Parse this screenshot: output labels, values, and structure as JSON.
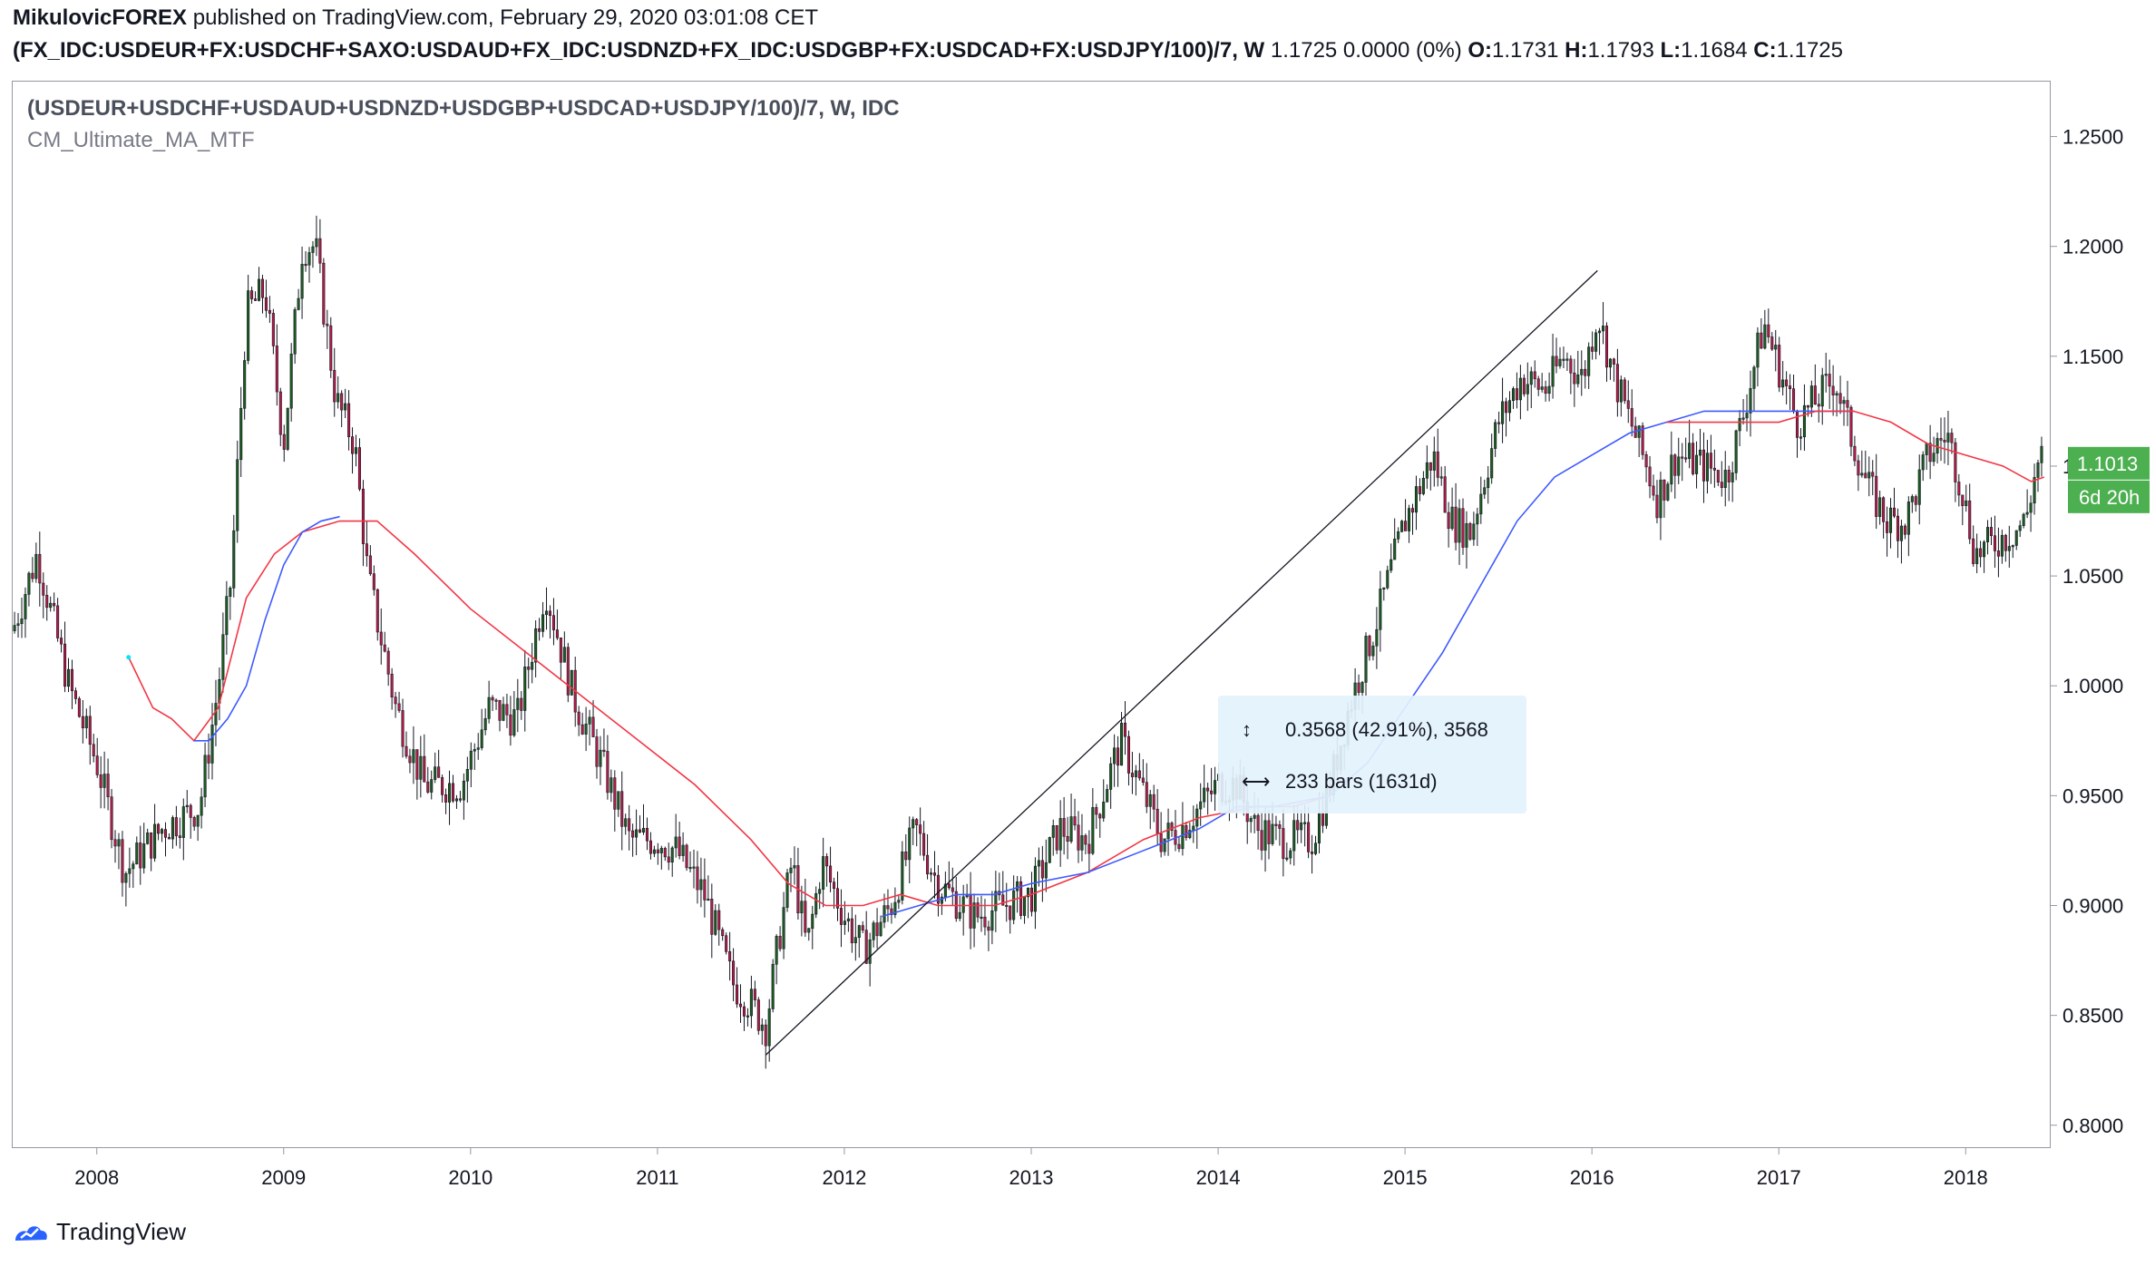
{
  "header": {
    "publisher": "MikulovicFOREX",
    "published_text": " published on TradingView.com, February 29, 2020 03:01:08 CET",
    "symbol": "(FX_IDC:USDEUR+FX:USDCHF+SAXO:USDAUD+FX_IDC:USDNZD+FX_IDC:USDGBP+FX:USDCAD+FX:USDJPY/100)/7, W",
    "quote": "1.1725 0.0000 (0%)",
    "o_label": "O:",
    "o_value": "1.1731",
    "h_label": "H:",
    "h_value": "1.1793",
    "l_label": "L:",
    "l_value": "1.1684",
    "c_label": "C:",
    "c_value": "1.1725"
  },
  "legend": {
    "series": "(USDEUR+USDCHF+USDAUD+USDNZD+USDGBP+USDCAD+USDJPY/100)/7, W, IDC",
    "indicator": "CM_Ultimate_MA_MTF"
  },
  "footer": {
    "brand": "TradingView"
  },
  "colors": {
    "up": "#26a69a",
    "up_body": "#1b5e20",
    "down_body": "#b71c4a",
    "wick": "#131722",
    "ma_red": "#f23645",
    "ma_blue": "#3d5afe",
    "accent": "#4caf50",
    "measure_bg": "#e3f2fd"
  },
  "chart_data": {
    "type": "candlestick",
    "timeframe": "W",
    "x_axis": {
      "type": "time",
      "range": [
        2007.55,
        2018.45
      ],
      "tick_labels": [
        "2008",
        "2009",
        "2010",
        "2011",
        "2012",
        "2013",
        "2014",
        "2015",
        "2016",
        "2017",
        "2018"
      ]
    },
    "y_axis": {
      "range": [
        0.79,
        1.275
      ],
      "position": "right",
      "tick_labels": [
        "1.2500",
        "1.2000",
        "1.1500",
        "1.1000",
        "1.0500",
        "1.0000",
        "0.9500",
        "0.9000",
        "0.8500",
        "0.8000"
      ],
      "tick_values": [
        1.25,
        1.2,
        1.15,
        1.1,
        1.05,
        1.0,
        0.95,
        0.9,
        0.85,
        0.8
      ]
    },
    "price_anchors": [
      [
        2007.55,
        1.025
      ],
      [
        2007.68,
        1.06
      ],
      [
        2007.85,
        1.0
      ],
      [
        2008.0,
        0.965
      ],
      [
        2008.15,
        0.915
      ],
      [
        2008.35,
        0.935
      ],
      [
        2008.55,
        0.945
      ],
      [
        2008.65,
        1.0
      ],
      [
        2008.72,
        1.05
      ],
      [
        2008.8,
        1.17
      ],
      [
        2008.9,
        1.18
      ],
      [
        2009.0,
        1.11
      ],
      [
        2009.1,
        1.2
      ],
      [
        2009.17,
        1.2
      ],
      [
        2009.28,
        1.13
      ],
      [
        2009.38,
        1.11
      ],
      [
        2009.45,
        1.05
      ],
      [
        2009.6,
        0.99
      ],
      [
        2009.75,
        0.955
      ],
      [
        2009.95,
        0.955
      ],
      [
        2010.1,
        0.99
      ],
      [
        2010.25,
        0.985
      ],
      [
        2010.4,
        1.045
      ],
      [
        2010.55,
        0.995
      ],
      [
        2010.7,
        0.965
      ],
      [
        2010.85,
        0.93
      ],
      [
        2011.0,
        0.93
      ],
      [
        2011.1,
        0.925
      ],
      [
        2011.25,
        0.905
      ],
      [
        2011.4,
        0.865
      ],
      [
        2011.5,
        0.855
      ],
      [
        2011.58,
        0.845
      ],
      [
        2011.65,
        0.885
      ],
      [
        2011.72,
        0.92
      ],
      [
        2011.8,
        0.88
      ],
      [
        2011.88,
        0.92
      ],
      [
        2012.0,
        0.895
      ],
      [
        2012.1,
        0.88
      ],
      [
        2012.25,
        0.9
      ],
      [
        2012.38,
        0.935
      ],
      [
        2012.5,
        0.91
      ],
      [
        2012.7,
        0.895
      ],
      [
        2012.85,
        0.9
      ],
      [
        2013.0,
        0.905
      ],
      [
        2013.15,
        0.935
      ],
      [
        2013.3,
        0.93
      ],
      [
        2013.4,
        0.955
      ],
      [
        2013.48,
        0.975
      ],
      [
        2013.58,
        0.955
      ],
      [
        2013.7,
        0.93
      ],
      [
        2013.8,
        0.935
      ],
      [
        2014.0,
        0.955
      ],
      [
        2014.1,
        0.955
      ],
      [
        2014.2,
        0.935
      ],
      [
        2014.35,
        0.93
      ],
      [
        2014.5,
        0.93
      ],
      [
        2014.6,
        0.955
      ],
      [
        2014.7,
        0.99
      ],
      [
        2014.85,
        1.03
      ],
      [
        2015.0,
        1.075
      ],
      [
        2015.15,
        1.105
      ],
      [
        2015.25,
        1.075
      ],
      [
        2015.35,
        1.07
      ],
      [
        2015.5,
        1.12
      ],
      [
        2015.62,
        1.14
      ],
      [
        2015.75,
        1.135
      ],
      [
        2015.85,
        1.15
      ],
      [
        2015.95,
        1.14
      ],
      [
        2016.03,
        1.17
      ],
      [
        2016.12,
        1.14
      ],
      [
        2016.25,
        1.11
      ],
      [
        2016.35,
        1.085
      ],
      [
        2016.45,
        1.105
      ],
      [
        2016.6,
        1.1
      ],
      [
        2016.72,
        1.095
      ],
      [
        2016.8,
        1.12
      ],
      [
        2016.92,
        1.165
      ],
      [
        2017.02,
        1.14
      ],
      [
        2017.1,
        1.12
      ],
      [
        2017.2,
        1.13
      ],
      [
        2017.3,
        1.14
      ],
      [
        2017.38,
        1.115
      ],
      [
        2017.48,
        1.09
      ],
      [
        2017.58,
        1.075
      ],
      [
        2017.68,
        1.075
      ],
      [
        2017.8,
        1.105
      ],
      [
        2017.9,
        1.115
      ],
      [
        2017.98,
        1.09
      ],
      [
        2018.05,
        1.06
      ],
      [
        2018.15,
        1.065
      ],
      [
        2018.25,
        1.07
      ],
      [
        2018.32,
        1.075
      ],
      [
        2018.38,
        1.1
      ],
      [
        2018.42,
        1.105
      ]
    ],
    "ma_red": [
      [
        2008.17,
        1.013
      ],
      [
        2008.3,
        0.99
      ],
      [
        2008.4,
        0.985
      ],
      [
        2008.52,
        0.975
      ],
      [
        2008.65,
        0.99
      ],
      [
        2008.8,
        1.04
      ],
      [
        2008.95,
        1.06
      ],
      [
        2009.1,
        1.07
      ],
      [
        2009.3,
        1.075
      ],
      [
        2009.5,
        1.075
      ],
      [
        2009.7,
        1.06
      ],
      [
        2010.0,
        1.035
      ],
      [
        2010.3,
        1.015
      ],
      [
        2010.6,
        0.995
      ],
      [
        2010.9,
        0.975
      ],
      [
        2011.2,
        0.955
      ],
      [
        2011.5,
        0.93
      ],
      [
        2011.7,
        0.91
      ],
      [
        2011.9,
        0.9
      ],
      [
        2012.1,
        0.9
      ],
      [
        2012.3,
        0.905
      ],
      [
        2012.5,
        0.9
      ],
      [
        2012.8,
        0.9
      ],
      [
        2013.0,
        0.905
      ],
      [
        2013.3,
        0.915
      ],
      [
        2013.6,
        0.93
      ],
      [
        2013.9,
        0.94
      ],
      [
        2014.2,
        0.945
      ],
      [
        2014.4,
        0.945
      ],
      [
        2014.6,
        0.95
      ]
    ],
    "ma_blue": [
      [
        2008.52,
        0.975
      ],
      [
        2008.6,
        0.975
      ],
      [
        2008.7,
        0.985
      ],
      [
        2008.8,
        1.0
      ],
      [
        2008.9,
        1.03
      ],
      [
        2009.0,
        1.055
      ],
      [
        2009.1,
        1.07
      ],
      [
        2009.2,
        1.075
      ],
      [
        2009.3,
        1.077
      ]
    ],
    "ma_blue_2": [
      [
        2012.2,
        0.895
      ],
      [
        2012.4,
        0.9
      ],
      [
        2012.6,
        0.905
      ],
      [
        2012.8,
        0.905
      ],
      [
        2013.0,
        0.91
      ],
      [
        2013.3,
        0.915
      ],
      [
        2013.6,
        0.925
      ],
      [
        2013.9,
        0.935
      ],
      [
        2014.1,
        0.945
      ],
      [
        2014.3,
        0.945
      ],
      [
        2014.6,
        0.95
      ],
      [
        2014.8,
        0.965
      ],
      [
        2015.0,
        0.99
      ],
      [
        2015.2,
        1.015
      ],
      [
        2015.4,
        1.045
      ],
      [
        2015.6,
        1.075
      ],
      [
        2015.8,
        1.095
      ],
      [
        2016.0,
        1.105
      ],
      [
        2016.2,
        1.115
      ],
      [
        2016.4,
        1.12
      ],
      [
        2016.6,
        1.125
      ],
      [
        2016.8,
        1.125
      ],
      [
        2017.0,
        1.125
      ],
      [
        2017.2,
        1.125
      ],
      [
        2017.4,
        1.125
      ]
    ],
    "ma_red_2": [
      [
        2016.4,
        1.12
      ],
      [
        2016.6,
        1.12
      ],
      [
        2016.8,
        1.12
      ],
      [
        2017.0,
        1.12
      ],
      [
        2017.2,
        1.125
      ],
      [
        2017.4,
        1.125
      ],
      [
        2017.6,
        1.12
      ],
      [
        2017.8,
        1.11
      ],
      [
        2018.0,
        1.105
      ],
      [
        2018.2,
        1.1
      ],
      [
        2018.35,
        1.093
      ],
      [
        2018.42,
        1.095
      ]
    ],
    "trendline": {
      "from": [
        2011.58,
        0.832
      ],
      "to": [
        2016.03,
        1.189
      ]
    },
    "measure": {
      "price_range": "0.3568 (42.91%), 3568",
      "bars": "233 bars (1631d)"
    },
    "last_price_label": "1.1013",
    "countdown_label": "6d 20h",
    "last_price": 1.1013
  }
}
